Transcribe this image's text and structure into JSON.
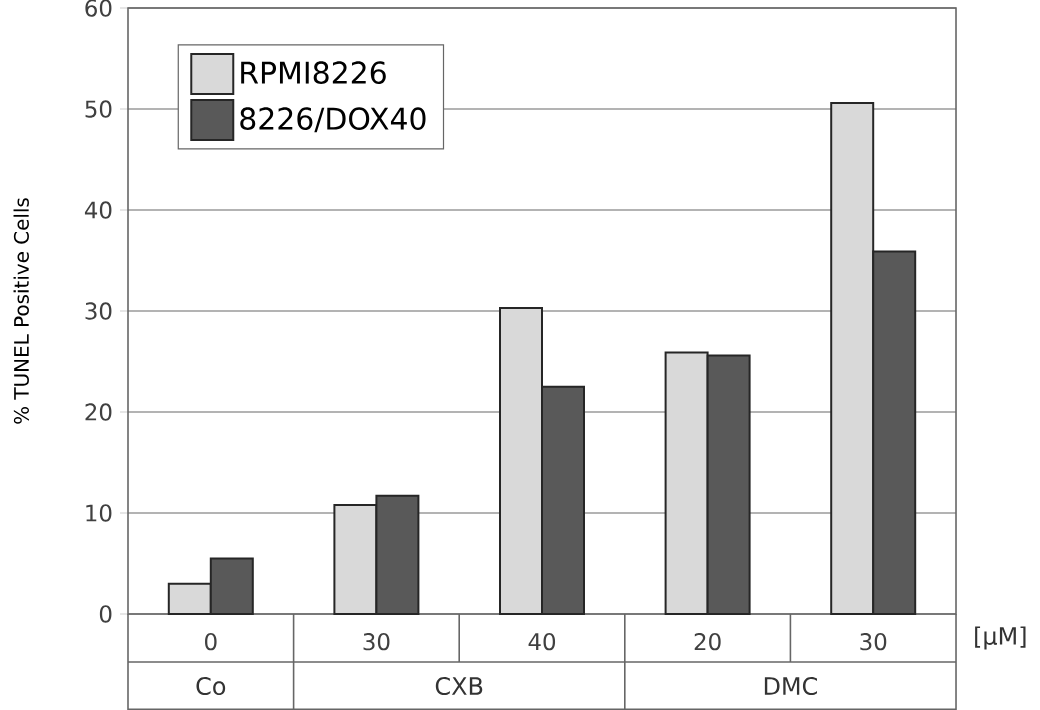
{
  "chart_data": {
    "type": "bar",
    "ylabel": "% TUNEL Positive Cells",
    "categories": [
      "0",
      "30",
      "40",
      "20",
      "30"
    ],
    "series": [
      {
        "name": "RPMI8226",
        "color": "#d9d9d9",
        "values": [
          3.0,
          10.8,
          30.3,
          25.9,
          50.6
        ]
      },
      {
        "name": "8226/DOX40",
        "color": "#595959",
        "values": [
          5.5,
          11.7,
          22.5,
          25.6,
          35.9
        ]
      }
    ],
    "ylim": [
      0,
      60
    ],
    "yticks": [
      0,
      10,
      20,
      30,
      40,
      50,
      60
    ],
    "grid": "y",
    "legend": "top left",
    "annotations": [
      "[µM]",
      "Co",
      "CXB",
      "DMC"
    ]
  }
}
